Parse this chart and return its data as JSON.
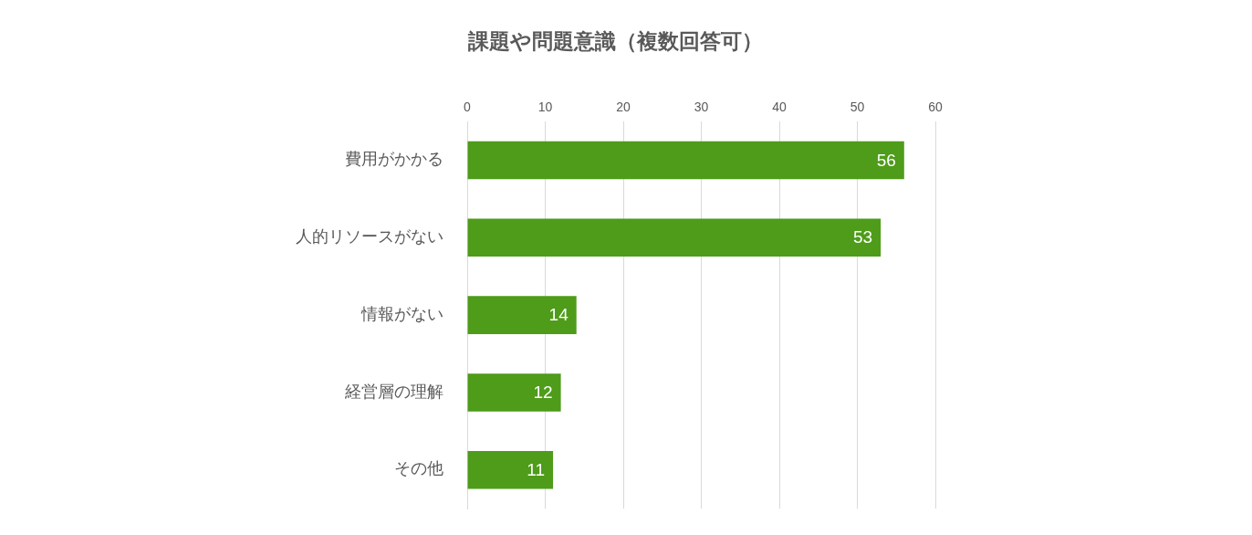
{
  "chart_data": {
    "type": "bar",
    "orientation": "horizontal",
    "title": "課題や問題意識（複数回答可）",
    "categories": [
      "費用がかかる",
      "人的リソースがない",
      "情報がない",
      "経営層の理解",
      "その他"
    ],
    "values": [
      56,
      53,
      14,
      12,
      11
    ],
    "color": "#4e9c1a",
    "xlim": [
      0,
      60
    ],
    "xticks": [
      0,
      10,
      20,
      30,
      40,
      50,
      60
    ],
    "grid": "x",
    "data_labels": true,
    "legend": false
  }
}
